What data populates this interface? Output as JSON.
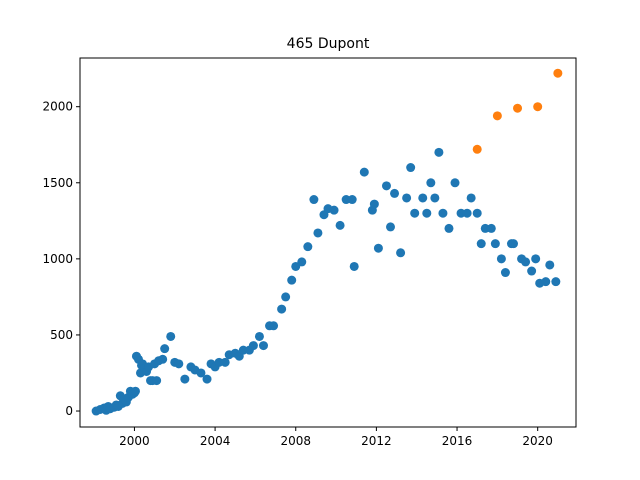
{
  "chart_data": {
    "type": "scatter",
    "title": "465 Dupont",
    "xlabel": "",
    "ylabel": "",
    "xlim": [
      1997.3,
      2021.9
    ],
    "ylim": [
      -105,
      2320
    ],
    "x_ticks": [
      2000,
      2004,
      2008,
      2012,
      2016,
      2020
    ],
    "y_ticks": [
      0,
      500,
      1000,
      1500,
      2000
    ],
    "grid": false,
    "series": [
      {
        "color": "#1f77b4",
        "points": [
          [
            1998.1,
            0
          ],
          [
            1998.3,
            10
          ],
          [
            1998.5,
            20
          ],
          [
            1998.6,
            5
          ],
          [
            1998.7,
            30
          ],
          [
            1998.8,
            15
          ],
          [
            1999.0,
            25
          ],
          [
            1999.1,
            40
          ],
          [
            1999.2,
            30
          ],
          [
            1999.3,
            100
          ],
          [
            1999.4,
            50
          ],
          [
            1999.5,
            80
          ],
          [
            1999.6,
            60
          ],
          [
            1999.7,
            90
          ],
          [
            1999.8,
            130
          ],
          [
            1999.9,
            110
          ],
          [
            2000.0,
            120
          ],
          [
            2000.05,
            130
          ],
          [
            2000.1,
            360
          ],
          [
            2000.2,
            340
          ],
          [
            2000.3,
            250
          ],
          [
            2000.35,
            300
          ],
          [
            2000.4,
            310
          ],
          [
            2000.5,
            280
          ],
          [
            2000.6,
            260
          ],
          [
            2000.7,
            290
          ],
          [
            2000.8,
            200
          ],
          [
            2000.9,
            200
          ],
          [
            2001.0,
            310
          ],
          [
            2001.1,
            200
          ],
          [
            2001.2,
            330
          ],
          [
            2001.4,
            340
          ],
          [
            2001.5,
            410
          ],
          [
            2001.8,
            490
          ],
          [
            2002.0,
            320
          ],
          [
            2002.2,
            310
          ],
          [
            2002.5,
            210
          ],
          [
            2002.8,
            290
          ],
          [
            2003.0,
            270
          ],
          [
            2003.3,
            250
          ],
          [
            2003.6,
            210
          ],
          [
            2003.8,
            310
          ],
          [
            2004.0,
            290
          ],
          [
            2004.2,
            320
          ],
          [
            2004.5,
            320
          ],
          [
            2004.7,
            370
          ],
          [
            2005.0,
            380
          ],
          [
            2005.2,
            360
          ],
          [
            2005.4,
            400
          ],
          [
            2005.7,
            400
          ],
          [
            2005.9,
            430
          ],
          [
            2006.2,
            490
          ],
          [
            2006.4,
            430
          ],
          [
            2006.7,
            560
          ],
          [
            2006.9,
            560
          ],
          [
            2007.3,
            670
          ],
          [
            2007.5,
            750
          ],
          [
            2007.8,
            860
          ],
          [
            2008.0,
            950
          ],
          [
            2008.3,
            980
          ],
          [
            2008.6,
            1080
          ],
          [
            2008.9,
            1390
          ],
          [
            2009.1,
            1170
          ],
          [
            2009.4,
            1290
          ],
          [
            2009.6,
            1330
          ],
          [
            2009.9,
            1320
          ],
          [
            2010.2,
            1220
          ],
          [
            2010.5,
            1390
          ],
          [
            2010.8,
            1390
          ],
          [
            2010.9,
            950
          ],
          [
            2011.4,
            1570
          ],
          [
            2011.8,
            1320
          ],
          [
            2011.9,
            1360
          ],
          [
            2012.1,
            1070
          ],
          [
            2012.5,
            1480
          ],
          [
            2012.7,
            1210
          ],
          [
            2012.9,
            1430
          ],
          [
            2013.2,
            1040
          ],
          [
            2013.5,
            1400
          ],
          [
            2013.7,
            1600
          ],
          [
            2013.9,
            1300
          ],
          [
            2014.3,
            1400
          ],
          [
            2014.5,
            1300
          ],
          [
            2014.7,
            1500
          ],
          [
            2014.9,
            1400
          ],
          [
            2015.1,
            1700
          ],
          [
            2015.3,
            1300
          ],
          [
            2015.6,
            1200
          ],
          [
            2015.9,
            1500
          ],
          [
            2016.2,
            1300
          ],
          [
            2016.5,
            1300
          ],
          [
            2016.7,
            1400
          ],
          [
            2017.0,
            1300
          ],
          [
            2017.2,
            1100
          ],
          [
            2017.4,
            1200
          ],
          [
            2017.7,
            1200
          ],
          [
            2017.9,
            1100
          ],
          [
            2018.2,
            1000
          ],
          [
            2018.4,
            910
          ],
          [
            2018.7,
            1100
          ],
          [
            2018.8,
            1100
          ],
          [
            2019.2,
            1000
          ],
          [
            2019.4,
            980
          ],
          [
            2019.7,
            920
          ],
          [
            2019.9,
            1000
          ],
          [
            2020.1,
            840
          ],
          [
            2020.4,
            850
          ],
          [
            2020.6,
            960
          ],
          [
            2020.9,
            850
          ]
        ]
      },
      {
        "color": "#ff7f0e",
        "points": [
          [
            2017.0,
            1720
          ],
          [
            2018.0,
            1940
          ],
          [
            2019.0,
            1990
          ],
          [
            2020.0,
            2000
          ],
          [
            2021.0,
            2220
          ]
        ]
      }
    ]
  }
}
